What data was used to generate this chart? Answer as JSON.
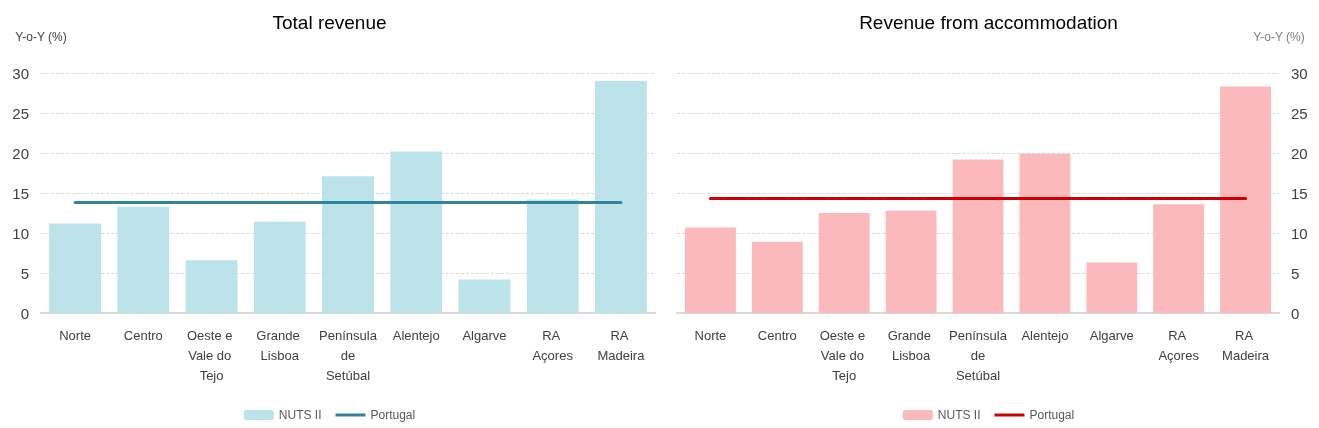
{
  "chart_data": [
    {
      "type": "bar",
      "title": "Total revenue",
      "ylabel": "Y-o-Y (%)",
      "categories": [
        "Norte",
        "Centro",
        "Oeste e Vale do Tejo",
        "Grande Lisboa",
        "Península de Setúbal",
        "Alentejo",
        "Algarve",
        "RA Açores",
        "RA Madeira"
      ],
      "series": [
        {
          "name": "NUTS II",
          "color": "#bde3ea",
          "values": [
            11.2,
            13.3,
            6.6,
            11.4,
            17.1,
            20.2,
            4.2,
            14.2,
            29.0
          ]
        },
        {
          "name": "Portugal",
          "type": "line",
          "color": "#31849b",
          "values": [
            13.8,
            13.8,
            13.8,
            13.8,
            13.8,
            13.8,
            13.8,
            13.8,
            13.8
          ]
        }
      ],
      "ylim": [
        0,
        30
      ],
      "yticks": [
        0,
        5,
        10,
        15,
        20,
        25,
        30
      ],
      "grid": "y",
      "legend": "bottom",
      "marker": "none"
    },
    {
      "type": "bar",
      "title": "Revenue from accommodation",
      "y2label": "Y-o-Y (%)",
      "categories": [
        "Norte",
        "Centro",
        "Oeste e Vale do Tejo",
        "Grande Lisboa",
        "Península de Setúbal",
        "Alentejo",
        "Algarve",
        "RA Açores",
        "RA Madeira"
      ],
      "series": [
        {
          "name": "NUTS II",
          "color": "#fbb9bc",
          "axis": "y2",
          "values": [
            10.7,
            8.9,
            12.5,
            12.8,
            19.2,
            19.9,
            6.3,
            13.6,
            28.3
          ]
        },
        {
          "name": "Portugal",
          "type": "line",
          "color": "#cc0000",
          "axis": "y2",
          "values": [
            14.3,
            14.3,
            14.3,
            14.3,
            14.3,
            14.3,
            14.3,
            14.3,
            14.3
          ]
        }
      ],
      "y2lim": [
        0,
        30
      ],
      "y2ticks": [
        0,
        5,
        10,
        15,
        20,
        25,
        30
      ],
      "grid": "y",
      "legend": "bottom",
      "marker": "none"
    }
  ]
}
